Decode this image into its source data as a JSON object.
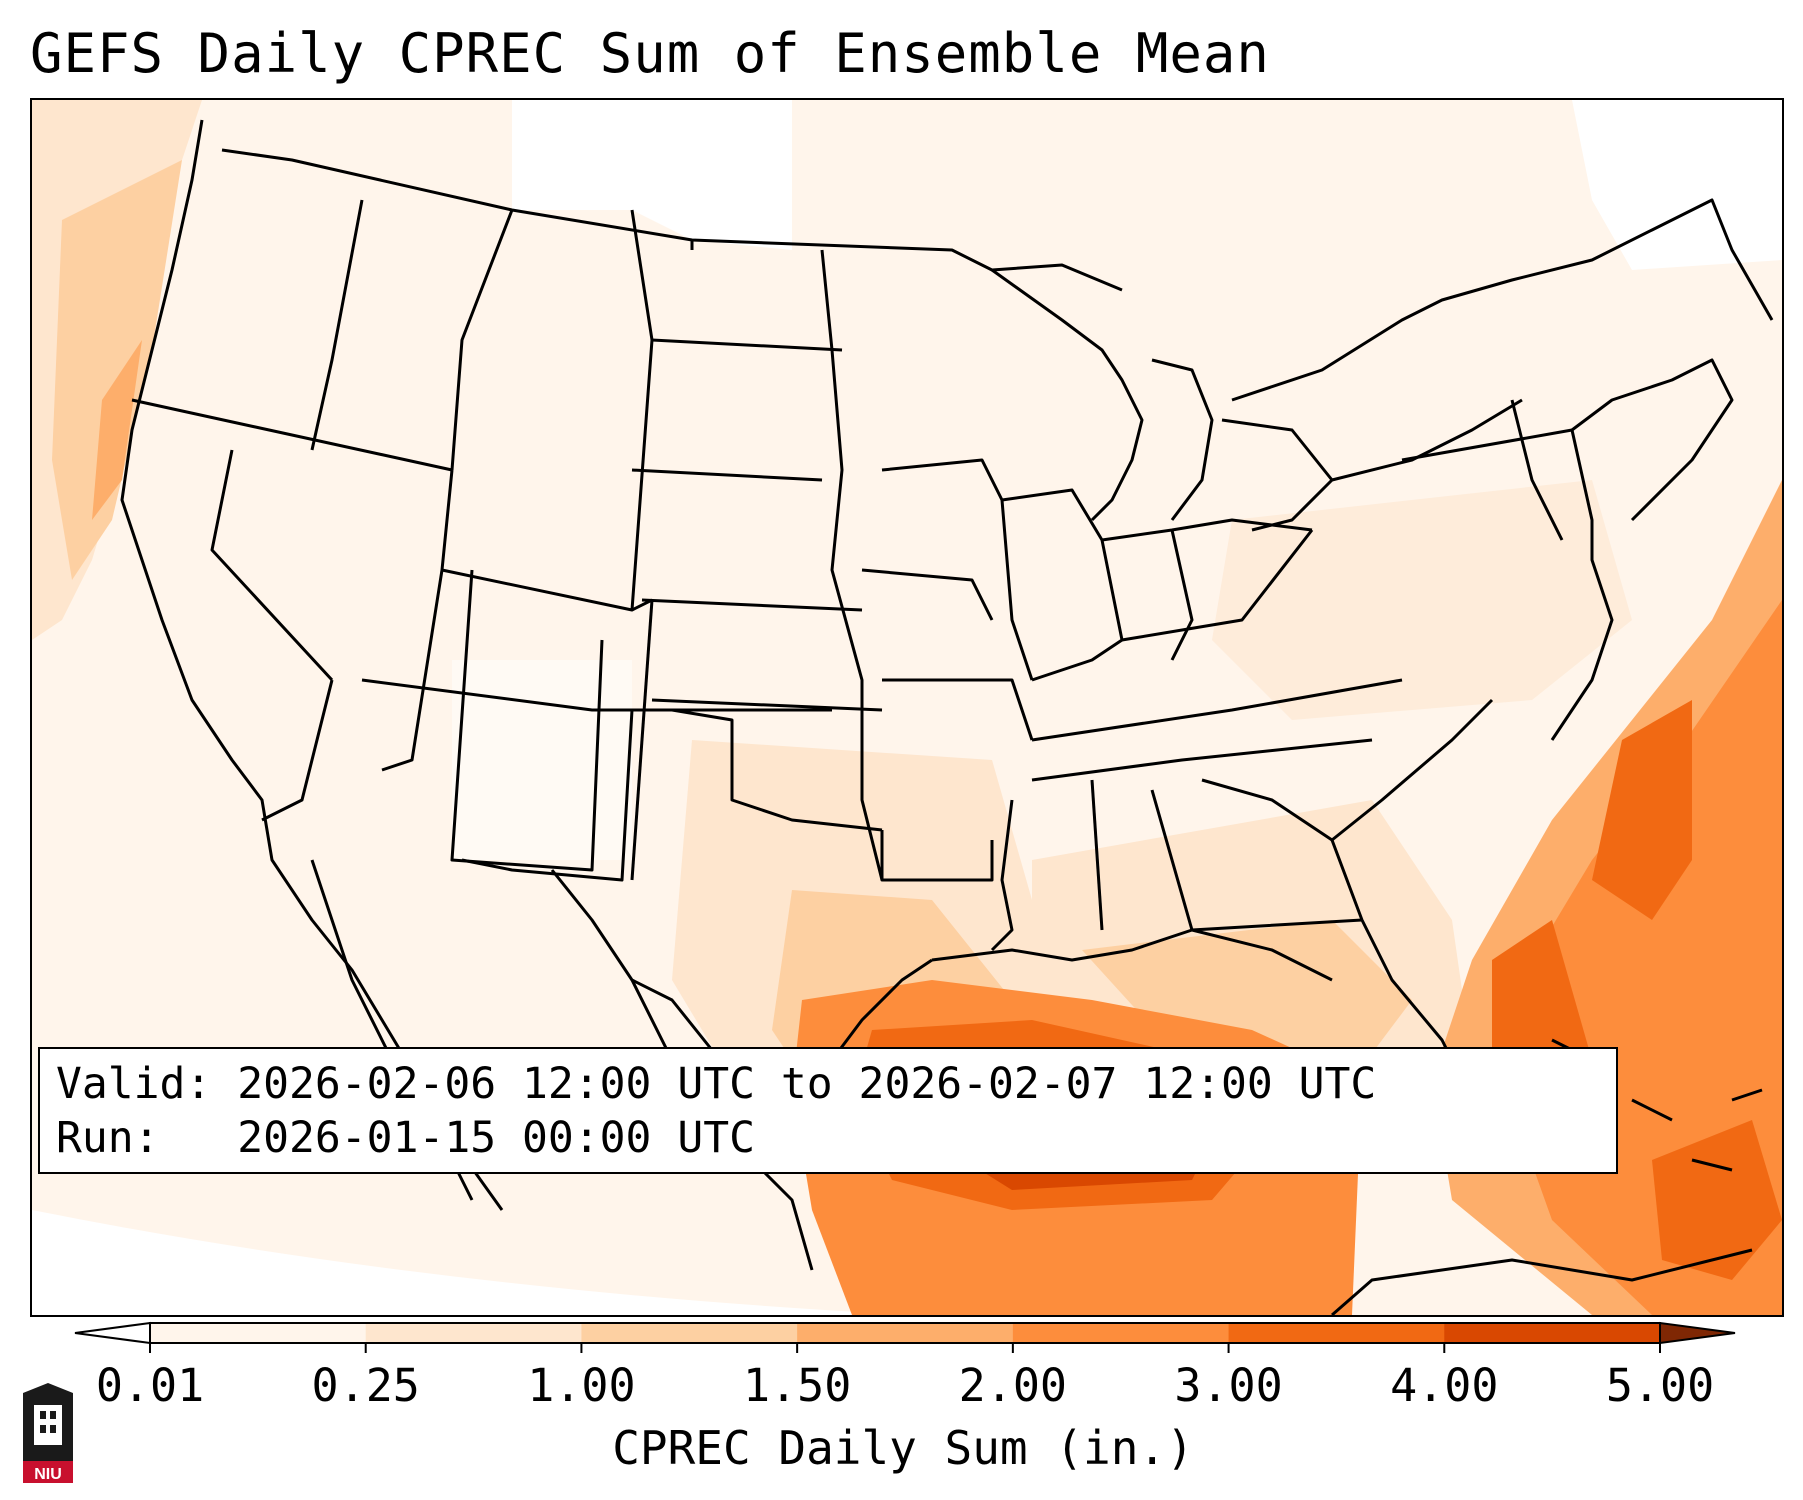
{
  "title": "GEFS Daily CPREC Sum of Ensemble Mean",
  "info": {
    "valid_label": "Valid:",
    "valid_value": "2026-02-06 12:00 UTC to 2026-02-07 12:00 UTC",
    "run_label": "Run:",
    "run_value": "2026-01-15 00:00 UTC"
  },
  "colorbar": {
    "label": "CPREC Daily Sum (in.)",
    "ticks": [
      "0.01",
      "0.25",
      "1.00",
      "1.50",
      "2.00",
      "3.00",
      "4.00",
      "5.00"
    ],
    "colors": [
      "#fff5eb",
      "#fee6ce",
      "#fdd0a2",
      "#fdae6b",
      "#fd8d3c",
      "#f16913",
      "#d94801",
      "#a63603"
    ],
    "under_color": "#ffffff",
    "over_color": "#7f2704",
    "extend": "both"
  },
  "logo": {
    "text": "NIU",
    "accent": "#c8102e"
  },
  "map": {
    "region": "CONUS",
    "field": "CPREC daily sum ensemble mean",
    "max_region": "central Gulf of Mexico",
    "overlay": "state and country borders"
  }
}
